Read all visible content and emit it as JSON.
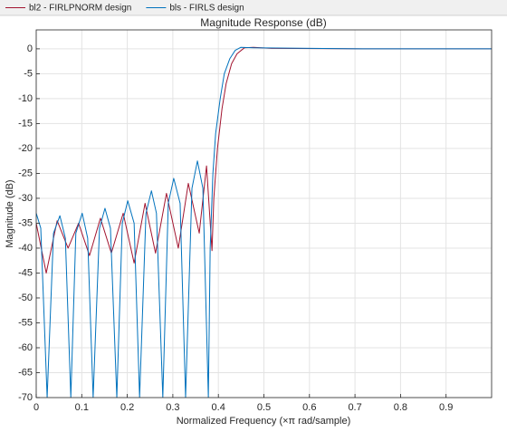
{
  "chart_data": {
    "type": "line",
    "title": "Magnitude Response (dB)",
    "xlabel": "Normalized Frequency (×π rad/sample)",
    "ylabel": "Magnitude (dB)",
    "xlim": [
      0,
      1
    ],
    "ylim": [
      -70,
      3.8
    ],
    "xticks": [
      0,
      0.1,
      0.2,
      0.3,
      0.4,
      0.5,
      0.6,
      0.7,
      0.8,
      0.9
    ],
    "yticks": [
      0,
      -5,
      -10,
      -15,
      -20,
      -25,
      -30,
      -35,
      -40,
      -45,
      -50,
      -55,
      -60,
      -65,
      -70
    ],
    "grid": true,
    "legend": "top",
    "series": [
      {
        "name": "bl2 - FIRLPNORM design",
        "color": "#a2142f",
        "x": [
          0,
          0.022,
          0.046,
          0.07,
          0.093,
          0.117,
          0.141,
          0.165,
          0.191,
          0.215,
          0.239,
          0.262,
          0.286,
          0.312,
          0.334,
          0.358,
          0.374,
          0.386,
          0.39,
          0.398,
          0.408,
          0.417,
          0.429,
          0.441,
          0.457,
          0.477,
          0.517,
          0.716,
          1.0
        ],
        "values": [
          -35,
          -45,
          -34.5,
          -40,
          -35,
          -41.5,
          -34,
          -41,
          -33,
          -43,
          -31,
          -41,
          -29,
          -40,
          -27,
          -37,
          -23.5,
          -40.5,
          -30,
          -20,
          -12,
          -7,
          -3,
          -1,
          0.2,
          0.3,
          0.1,
          0,
          0
        ]
      },
      {
        "name": "bls - FIRLS design",
        "color": "#0072bd",
        "x": [
          0,
          0.01,
          0.024,
          0.038,
          0.052,
          0.064,
          0.076,
          0.087,
          0.101,
          0.113,
          0.125,
          0.139,
          0.151,
          0.163,
          0.177,
          0.189,
          0.201,
          0.215,
          0.227,
          0.241,
          0.253,
          0.264,
          0.278,
          0.29,
          0.302,
          0.316,
          0.328,
          0.342,
          0.354,
          0.366,
          0.378,
          0.382,
          0.388,
          0.394,
          0.404,
          0.413,
          0.425,
          0.437,
          0.449,
          0.477,
          0.716,
          1.0
        ],
        "values": [
          -33,
          -36,
          -70,
          -37,
          -33.5,
          -38,
          -70,
          -37,
          -33,
          -38,
          -70,
          -36,
          -32,
          -36,
          -70,
          -35,
          -30.5,
          -35,
          -70,
          -33,
          -28.5,
          -33,
          -70,
          -31,
          -26,
          -31,
          -70,
          -28,
          -22.5,
          -28,
          -70,
          -40,
          -25,
          -17,
          -10,
          -5,
          -2,
          -0.3,
          0.3,
          0.2,
          0,
          0
        ]
      }
    ]
  }
}
